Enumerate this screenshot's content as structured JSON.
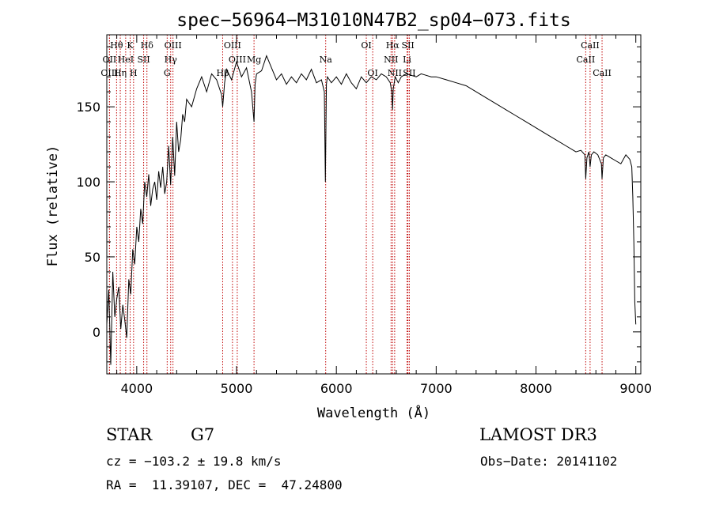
{
  "chart_data": {
    "type": "line",
    "title": "spec−56964−M31010N47B2_sp04−073.fits",
    "xlabel": "Wavelength (Å)",
    "ylabel": "Flux (relative)",
    "xlim": [
      3700,
      9050
    ],
    "ylim": [
      -28,
      198
    ],
    "grid": false,
    "x_ticks": [
      4000,
      5000,
      6000,
      7000,
      8000,
      9000
    ],
    "y_ticks": [
      0,
      50,
      100,
      150
    ],
    "spectrum": {
      "x": [
        3700,
        3720,
        3740,
        3760,
        3780,
        3800,
        3820,
        3840,
        3860,
        3880,
        3900,
        3920,
        3940,
        3960,
        3980,
        4000,
        4020,
        4040,
        4060,
        4080,
        4100,
        4120,
        4140,
        4160,
        4180,
        4200,
        4220,
        4240,
        4260,
        4280,
        4300,
        4320,
        4340,
        4360,
        4380,
        4400,
        4420,
        4440,
        4460,
        4480,
        4500,
        4550,
        4600,
        4650,
        4700,
        4750,
        4800,
        4850,
        4861,
        4880,
        4900,
        4950,
        5000,
        5050,
        5100,
        5150,
        5175,
        5185,
        5200,
        5250,
        5300,
        5350,
        5400,
        5450,
        5500,
        5550,
        5600,
        5650,
        5700,
        5750,
        5800,
        5850,
        5880,
        5890,
        5895,
        5900,
        5910,
        5950,
        6000,
        6050,
        6100,
        6150,
        6200,
        6250,
        6300,
        6350,
        6400,
        6450,
        6500,
        6540,
        6555,
        6563,
        6570,
        6590,
        6620,
        6650,
        6700,
        6750,
        6800,
        6850,
        6900,
        6950,
        7000,
        7100,
        7200,
        7300,
        7400,
        7500,
        7600,
        7700,
        7800,
        7900,
        8000,
        8100,
        8200,
        8300,
        8400,
        8450,
        8490,
        8498,
        8510,
        8530,
        8542,
        8555,
        8580,
        8620,
        8655,
        8662,
        8675,
        8700,
        8750,
        8800,
        8850,
        8900,
        8940,
        8960,
        8970,
        8980,
        8990,
        9000
      ],
      "y": [
        5,
        28,
        -22,
        40,
        10,
        22,
        30,
        2,
        18,
        8,
        -4,
        35,
        25,
        55,
        45,
        70,
        60,
        82,
        72,
        100,
        90,
        105,
        84,
        95,
        100,
        88,
        107,
        96,
        110,
        92,
        100,
        124,
        98,
        130,
        104,
        140,
        120,
        128,
        145,
        140,
        155,
        150,
        162,
        170,
        160,
        172,
        168,
        158,
        150,
        166,
        175,
        168,
        180,
        170,
        176,
        160,
        140,
        165,
        172,
        174,
        184,
        176,
        168,
        172,
        165,
        170,
        166,
        172,
        168,
        175,
        166,
        168,
        160,
        100,
        130,
        165,
        170,
        166,
        170,
        165,
        172,
        166,
        162,
        170,
        166,
        170,
        168,
        172,
        170,
        166,
        160,
        148,
        162,
        170,
        166,
        170,
        172,
        171,
        170,
        172,
        171,
        170,
        170,
        168,
        166,
        164,
        160,
        156,
        152,
        148,
        144,
        140,
        136,
        132,
        128,
        124,
        120,
        121,
        118,
        102,
        116,
        120,
        110,
        118,
        120,
        118,
        112,
        102,
        116,
        118,
        116,
        114,
        112,
        118,
        115,
        110,
        90,
        60,
        20,
        5
      ],
      "color": "#000000"
    },
    "lines": [
      {
        "label": "Hθ",
        "x": 3798,
        "row": 1
      },
      {
        "label": "OII",
        "x": 3727,
        "row": 2
      },
      {
        "label": "OIII",
        "x": 3727,
        "row": 3
      },
      {
        "label": "K",
        "x": 3934,
        "row": 1
      },
      {
        "label": "HeI",
        "x": 3889,
        "row": 2
      },
      {
        "label": "Hη",
        "x": 3835,
        "row": 3
      },
      {
        "label": "H",
        "x": 3968,
        "row": 3
      },
      {
        "label": "SII",
        "x": 4069,
        "row": 2
      },
      {
        "label": "Hδ",
        "x": 4102,
        "row": 1
      },
      {
        "label": "OIII",
        "x": 4363,
        "row": 1
      },
      {
        "label": "Hγ",
        "x": 4340,
        "row": 2
      },
      {
        "label": "G",
        "x": 4305,
        "row": 3
      },
      {
        "label": "OIII",
        "x": 4959,
        "row": 1
      },
      {
        "label": "OIII",
        "x": 5007,
        "row": 2
      },
      {
        "label": "Hβ",
        "x": 4861,
        "row": 3
      },
      {
        "label": "Mg",
        "x": 5175,
        "row": 2
      },
      {
        "label": "Na",
        "x": 5893,
        "row": 2
      },
      {
        "label": "OI",
        "x": 6300,
        "row": 1
      },
      {
        "label": "OI",
        "x": 6364,
        "row": 3
      },
      {
        "label": "Hα",
        "x": 6563,
        "row": 1
      },
      {
        "label": "SII",
        "x": 6717,
        "row": 1
      },
      {
        "label": "NII",
        "x": 6548,
        "row": 2
      },
      {
        "label": "Li",
        "x": 6708,
        "row": 2
      },
      {
        "label": "NII",
        "x": 6584,
        "row": 3
      },
      {
        "label": "SII",
        "x": 6731,
        "row": 3
      },
      {
        "label": "CaII",
        "x": 8542,
        "row": 1
      },
      {
        "label": "CaII",
        "x": 8498,
        "row": 2
      },
      {
        "label": "CaII",
        "x": 8662,
        "row": 3
      }
    ],
    "line_color": "#c00000"
  },
  "info": {
    "obj_type": "STAR",
    "subclass": "G7",
    "survey": "LAMOST DR3",
    "cz": "cz = −103.2 ± 19.8 km/s",
    "obs_date": "Obs−Date: 20141102",
    "radec": "RA =  11.39107, DEC =  47.24800"
  }
}
